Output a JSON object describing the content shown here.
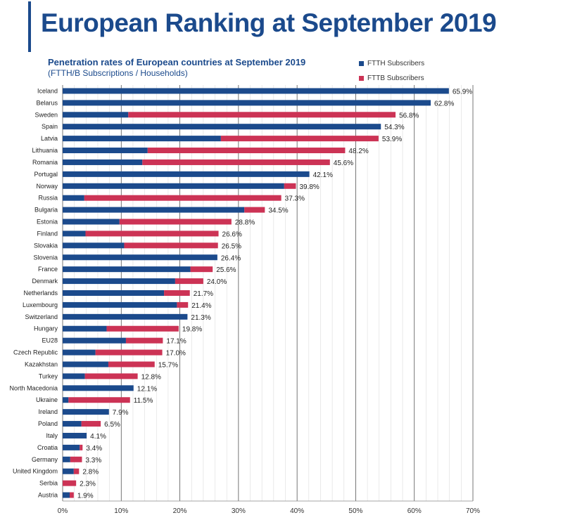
{
  "header": {
    "title": "European Ranking at September 2019"
  },
  "chart_data": {
    "type": "bar",
    "orientation": "horizontal",
    "stacked": true,
    "title": "Penetration rates of European countries at September 2019",
    "subtitle": "(FTTH/B Subscriptions / Households)",
    "xlim": [
      0,
      70
    ],
    "x_ticks": [
      "0%",
      "10%",
      "20%",
      "30%",
      "40%",
      "50%",
      "60%",
      "70%"
    ],
    "grid": true,
    "legend_position": "top-right",
    "categories": [
      "Iceland",
      "Belarus",
      "Sweden",
      "Spain",
      "Latvia",
      "Lithuania",
      "Romania",
      "Portugal",
      "Norway",
      "Russia",
      "Bulgaria",
      "Estonia",
      "Finland",
      "Slovakia",
      "Slovenia",
      "France",
      "Denmark",
      "Netherlands",
      "Luxembourg",
      "Switzerland",
      "Hungary",
      "EU28",
      "Czech Republic",
      "Kazakhstan",
      "Turkey",
      "North Macedonia",
      "Ukraine",
      "Ireland",
      "Poland",
      "Italy",
      "Croatia",
      "Germany",
      "United Kingdom",
      "Serbia",
      "Austria"
    ],
    "series": [
      {
        "name": "FTTH Subscribers",
        "color": "#1b4a8c",
        "values": [
          65.9,
          62.8,
          11.2,
          54.3,
          27.0,
          14.5,
          13.6,
          42.1,
          37.8,
          3.7,
          31.0,
          9.7,
          3.9,
          10.5,
          26.4,
          21.8,
          19.2,
          17.3,
          19.5,
          21.3,
          7.5,
          10.8,
          5.6,
          7.8,
          3.8,
          12.1,
          1.0,
          7.9,
          3.2,
          4.1,
          2.9,
          1.3,
          1.9,
          0.0,
          1.2
        ]
      },
      {
        "name": "FTTB Subscribers",
        "color": "#cc3355",
        "values": [
          0.0,
          0.0,
          45.6,
          0.0,
          26.9,
          33.7,
          32.0,
          0.0,
          2.0,
          33.6,
          3.5,
          19.1,
          22.7,
          16.0,
          0.0,
          3.8,
          4.8,
          4.4,
          1.9,
          0.0,
          12.3,
          6.3,
          11.4,
          7.9,
          9.0,
          0.0,
          10.5,
          0.0,
          3.3,
          0.0,
          0.5,
          2.0,
          0.9,
          2.3,
          0.7
        ]
      }
    ],
    "totals": [
      "65.9%",
      "62.8%",
      "56.8%",
      "54.3%",
      "53.9%",
      "48.2%",
      "45.6%",
      "42.1%",
      "39.8%",
      "37.3%",
      "34.5%",
      "28.8%",
      "26.6%",
      "26.5%",
      "26.4%",
      "25.6%",
      "24.0%",
      "21.7%",
      "21.4%",
      "21.3%",
      "19.8%",
      "17.1%",
      "17.0%",
      "15.7%",
      "12.8%",
      "12.1%",
      "11.5%",
      "7.9%",
      "6.5%",
      "4.1%",
      "3.4%",
      "3.3%",
      "2.8%",
      "2.3%",
      "1.9%"
    ]
  }
}
